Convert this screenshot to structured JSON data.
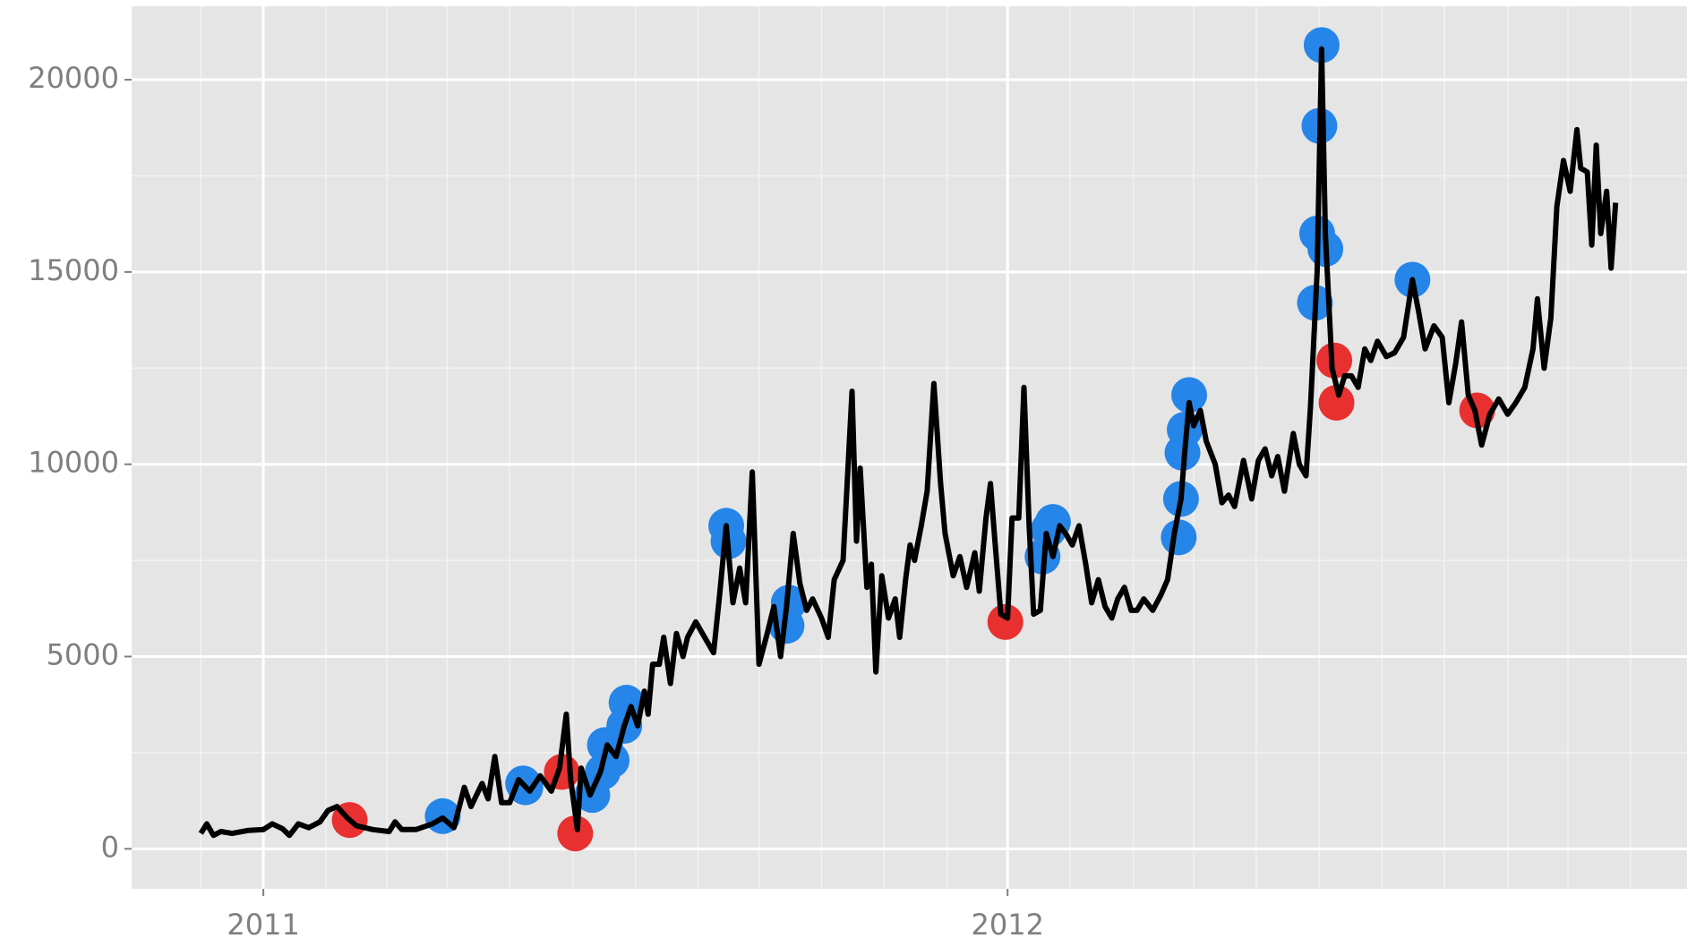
{
  "chart_data": {
    "type": "line",
    "xlim": [
      2010.823,
      2012.913
    ],
    "xticks": [
      2011,
      2012
    ],
    "xminorticks": [
      2010.916,
      2011.084,
      2011.166,
      2011.247,
      2011.331,
      2011.416,
      2011.5,
      2011.584,
      2011.666,
      2011.75,
      2011.834,
      2011.919,
      2012.084,
      2012.169,
      2012.25,
      2012.334,
      2012.419,
      2012.503,
      2012.587,
      2012.672,
      2012.753,
      2012.837
    ],
    "ylim": [
      -1040,
      21910
    ],
    "yticks": [
      0,
      5000,
      10000,
      15000,
      20000
    ],
    "yminorticks": [
      2500,
      7500,
      12500,
      17500
    ],
    "grid": true,
    "series": [
      {
        "type": "scatter",
        "color": "#2585e8",
        "x": [
          2011.241,
          2011.352,
          2011.349,
          2011.442,
          2011.456,
          2011.468,
          2011.459,
          2011.485,
          2011.488,
          2011.622,
          2011.625,
          2011.703,
          2011.706,
          2012.047,
          2012.055,
          2012.061,
          2012.23,
          2012.233,
          2012.235,
          2012.238,
          2012.244,
          2012.413,
          2012.416,
          2012.419,
          2012.422,
          2012.427,
          2012.544
        ],
        "values": [
          850,
          1600,
          1700,
          1400,
          2000,
          2300,
          2700,
          3200,
          3800,
          8400,
          8000,
          5800,
          6400,
          7600,
          8300,
          8500,
          8100,
          9100,
          10300,
          10900,
          11800,
          14200,
          16000,
          18800,
          20900,
          15600,
          14800
        ]
      },
      {
        "type": "scatter",
        "color": "#e83030",
        "x": [
          2011.116,
          2011.401,
          2011.419,
          2011.997,
          2012.439,
          2012.442,
          2012.631
        ],
        "values": [
          750,
          2000,
          400,
          5900,
          12700,
          11600,
          11400
        ]
      },
      {
        "type": "line",
        "color": "#000000",
        "x": [
          2010.916,
          2010.924,
          2010.933,
          2010.943,
          2010.958,
          2010.98,
          2011.0,
          2011.012,
          2011.026,
          2011.035,
          2011.047,
          2011.061,
          2011.076,
          2011.087,
          2011.099,
          2011.113,
          2011.125,
          2011.147,
          2011.169,
          2011.177,
          2011.186,
          2011.205,
          2011.227,
          2011.241,
          2011.256,
          2011.27,
          2011.279,
          2011.294,
          2011.302,
          2011.311,
          2011.32,
          2011.331,
          2011.343,
          2011.358,
          2011.372,
          2011.387,
          2011.398,
          2011.407,
          2011.413,
          2011.422,
          2011.427,
          2011.439,
          2011.453,
          2011.462,
          2011.474,
          2011.485,
          2011.494,
          2011.503,
          2011.512,
          2011.517,
          2011.523,
          2011.532,
          2011.538,
          2011.547,
          2011.555,
          2011.564,
          2011.57,
          2011.581,
          2011.593,
          2011.605,
          2011.613,
          2011.622,
          2011.631,
          2011.64,
          2011.648,
          2011.657,
          2011.666,
          2011.677,
          2011.686,
          2011.695,
          2011.703,
          2011.712,
          2011.721,
          2011.73,
          2011.738,
          2011.75,
          2011.759,
          2011.767,
          2011.779,
          2011.791,
          2011.797,
          2011.802,
          2011.811,
          2011.817,
          2011.823,
          2011.831,
          2011.84,
          2011.849,
          2011.855,
          2011.863,
          2011.869,
          2011.875,
          2011.884,
          2011.892,
          2011.901,
          2011.91,
          2011.916,
          2011.927,
          2011.936,
          2011.945,
          2011.956,
          2011.962,
          2011.971,
          2011.977,
          2011.983,
          2011.991,
          2012.0,
          2012.006,
          2012.015,
          2012.022,
          2012.029,
          2012.035,
          2012.044,
          2012.052,
          2012.061,
          2012.07,
          2012.078,
          2012.087,
          2012.096,
          2012.105,
          2012.113,
          2012.122,
          2012.131,
          2012.14,
          2012.148,
          2012.157,
          2012.166,
          2012.174,
          2012.183,
          2012.195,
          2012.206,
          2012.215,
          2012.224,
          2012.233,
          2012.238,
          2012.244,
          2012.25,
          2012.259,
          2012.267,
          2012.279,
          2012.288,
          2012.297,
          2012.305,
          2012.317,
          2012.328,
          2012.337,
          2012.346,
          2012.355,
          2012.363,
          2012.372,
          2012.384,
          2012.392,
          2012.401,
          2012.407,
          2012.416,
          2012.422,
          2012.427,
          2012.436,
          2012.445,
          2012.453,
          2012.462,
          2012.471,
          2012.48,
          2012.488,
          2012.497,
          2012.509,
          2012.52,
          2012.532,
          2012.544,
          2012.552,
          2012.561,
          2012.573,
          2012.584,
          2012.593,
          2012.602,
          2012.61,
          2012.619,
          2012.628,
          2012.637,
          2012.648,
          2012.66,
          2012.672,
          2012.683,
          2012.695,
          2012.706,
          2012.712,
          2012.721,
          2012.73,
          2012.738,
          2012.747,
          2012.756,
          2012.765,
          2012.77,
          2012.779,
          2012.785,
          2012.791,
          2012.797,
          2012.805,
          2012.811,
          2012.817
        ],
        "values": [
          400,
          650,
          350,
          450,
          400,
          480,
          500,
          650,
          520,
          350,
          650,
          550,
          700,
          1000,
          1100,
          800,
          600,
          500,
          450,
          700,
          500,
          500,
          650,
          800,
          550,
          1600,
          1100,
          1700,
          1300,
          2400,
          1200,
          1200,
          1800,
          1500,
          1900,
          1500,
          2100,
          3500,
          1800,
          500,
          2100,
          1400,
          2000,
          2700,
          2400,
          3200,
          3700,
          3200,
          4100,
          3500,
          4800,
          4800,
          5500,
          4300,
          5600,
          5000,
          5500,
          5900,
          5500,
          5100,
          6600,
          8400,
          6400,
          7300,
          6400,
          9800,
          4800,
          5600,
          6300,
          5000,
          6300,
          8200,
          6900,
          6200,
          6500,
          6000,
          5500,
          7000,
          7500,
          11900,
          8000,
          9900,
          6800,
          7400,
          4600,
          7100,
          6000,
          6500,
          5500,
          7000,
          7900,
          7500,
          8400,
          9300,
          12100,
          9500,
          8200,
          7100,
          7600,
          6800,
          7700,
          6700,
          8600,
          9500,
          8000,
          6100,
          6000,
          8600,
          8600,
          12000,
          8400,
          6100,
          6200,
          8200,
          7600,
          8400,
          8200,
          7900,
          8400,
          7400,
          6400,
          7000,
          6300,
          6000,
          6500,
          6800,
          6200,
          6200,
          6500,
          6200,
          6600,
          7000,
          8200,
          9100,
          10300,
          11600,
          11000,
          11400,
          10600,
          10000,
          9000,
          9200,
          8900,
          10100,
          9100,
          10100,
          10400,
          9700,
          10200,
          9300,
          10800,
          10000,
          9700,
          11500,
          15000,
          20800,
          16000,
          12500,
          11800,
          12300,
          12300,
          12000,
          13000,
          12700,
          13200,
          12800,
          12900,
          13300,
          14800,
          14000,
          13000,
          13600,
          13300,
          11600,
          12600,
          13700,
          11800,
          11400,
          10500,
          11300,
          11700,
          11300,
          11600,
          12000,
          13000,
          14300,
          12500,
          13800,
          16700,
          17900,
          17100,
          18700,
          17700,
          17600,
          15700,
          18300,
          16000,
          17100,
          15100,
          16800
        ]
      }
    ]
  }
}
